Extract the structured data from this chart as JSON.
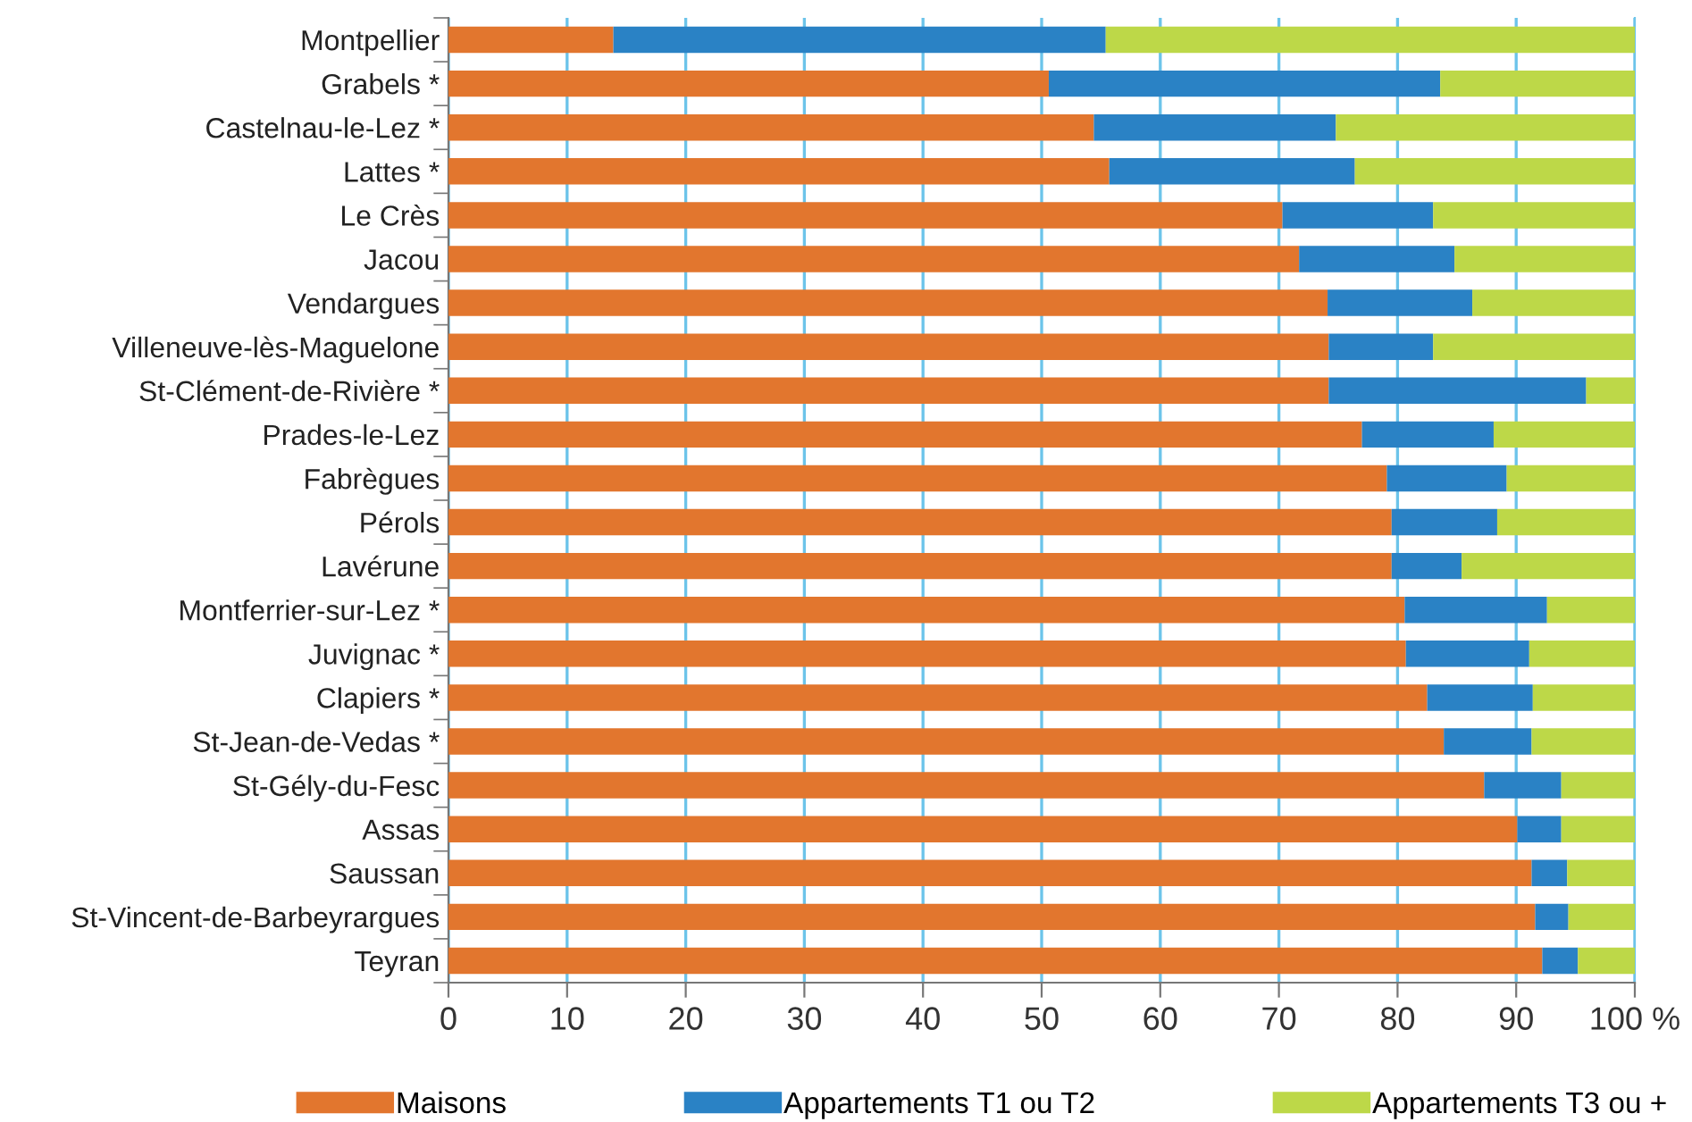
{
  "chart_data": {
    "type": "bar",
    "orientation": "horizontal",
    "stacked": true,
    "categories": [
      "Montpellier",
      "Grabels *",
      "Castelnau-le-Lez *",
      "Lattes *",
      "Le Crès",
      "Jacou",
      "Vendargues",
      "Villeneuve-lès-Maguelone",
      "St-Clément-de-Rivière *",
      "Prades-le-Lez",
      "Fabrègues",
      "Pérols",
      "Lavérune",
      "Montferrier-sur-Lez *",
      "Juvignac *",
      "Clapiers *",
      "St-Jean-de-Vedas *",
      "St-Gély-du-Fesc",
      "Assas",
      "Saussan",
      "St-Vincent-de-Barbeyrargues",
      "Teyran"
    ],
    "series": [
      {
        "name": "Maisons",
        "color": "#e2762e",
        "values": [
          13.9,
          50.6,
          54.4,
          55.7,
          70.3,
          71.7,
          74.1,
          74.2,
          74.2,
          77.0,
          79.1,
          79.5,
          79.5,
          80.6,
          80.7,
          82.5,
          83.9,
          87.3,
          90.1,
          91.3,
          91.6,
          92.2
        ]
      },
      {
        "name": "Appartements T1 ou T2",
        "color": "#2a82c5",
        "values": [
          41.5,
          33.0,
          20.4,
          20.7,
          12.7,
          13.1,
          12.2,
          8.8,
          21.7,
          11.1,
          10.1,
          8.9,
          5.9,
          12.0,
          10.4,
          8.9,
          7.4,
          6.5,
          3.7,
          3.0,
          2.8,
          3.0
        ]
      },
      {
        "name": "Appartements T3 ou +",
        "color": "#bdd848",
        "values": [
          44.6,
          16.4,
          25.2,
          23.6,
          17.0,
          15.2,
          13.7,
          17.0,
          4.1,
          11.9,
          10.8,
          11.6,
          14.6,
          7.4,
          8.9,
          8.6,
          8.7,
          6.2,
          6.2,
          5.7,
          5.6,
          4.8
        ]
      }
    ],
    "xlim": [
      0,
      100
    ],
    "xticks": [
      0,
      10,
      20,
      30,
      40,
      50,
      60,
      70,
      80,
      90,
      {
        "value": 100,
        "label": "100 %"
      }
    ],
    "grid": "x",
    "legend": "bottom"
  }
}
